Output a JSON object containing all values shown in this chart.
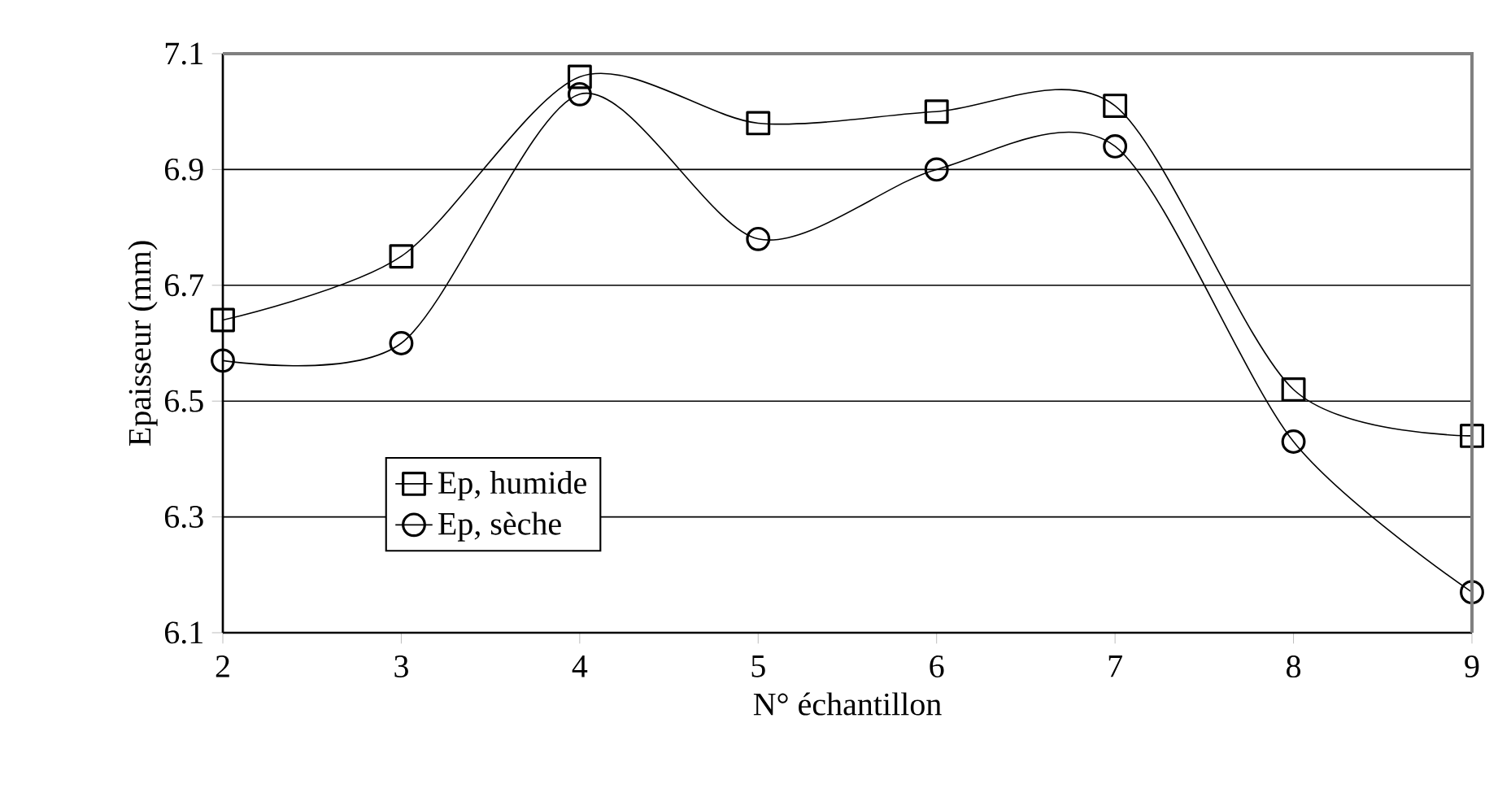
{
  "chart_data": {
    "type": "line",
    "xlabel": "N° échantillon",
    "ylabel": "Epaisseur (mm)",
    "x": [
      2,
      3,
      4,
      5,
      6,
      7,
      8,
      9
    ],
    "xlim": [
      2,
      9
    ],
    "xticks": [
      2,
      3,
      4,
      5,
      6,
      7,
      8,
      9
    ],
    "ylim": [
      6.1,
      7.1
    ],
    "yticks": [
      6.1,
      6.3,
      6.5,
      6.7,
      6.9,
      7.1
    ],
    "grid": "y",
    "legend": "bottom left",
    "line_style": "solid",
    "series": [
      {
        "name": "Ep, humide",
        "color": "#000000",
        "marker": "square",
        "values": [
          6.64,
          6.75,
          7.06,
          6.98,
          7.0,
          7.01,
          6.52,
          6.44
        ]
      },
      {
        "name": "Ep, sèche",
        "color": "#000000",
        "marker": "circle",
        "values": [
          6.57,
          6.6,
          7.03,
          6.78,
          6.9,
          6.94,
          6.43,
          6.17
        ]
      }
    ]
  }
}
